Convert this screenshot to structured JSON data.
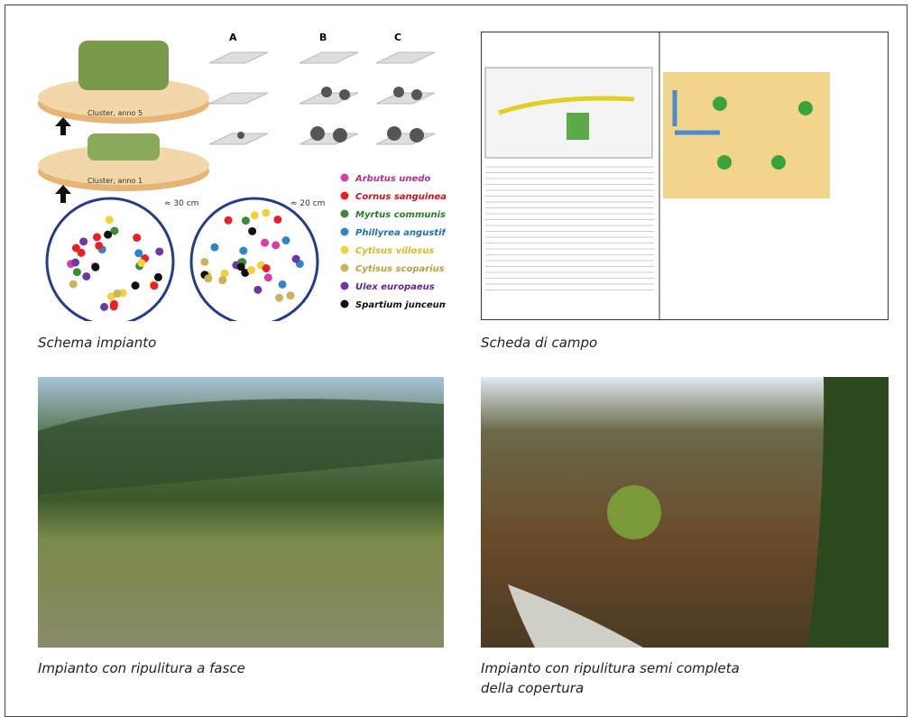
{
  "figures": [
    {
      "caption": "Schema impianto",
      "diagram": {
        "panels": [
          "A",
          "B",
          "C"
        ],
        "clusters": [
          "Cluster, anno 5",
          "Cluster, anno 1"
        ],
        "spacings": [
          "≈ 30 cm",
          "≈ 20 cm"
        ],
        "legend": [
          "Arbutus unedo",
          "Cornus sanguinea",
          "Myrtus communis",
          "Phillyrea angustifolia",
          "Cytisus villosus",
          "Cytisus scoparius",
          "Ulex europaeus",
          "Spartium junceum"
        ]
      }
    },
    {
      "caption": "Scheda di campo"
    },
    {
      "caption": "Impianto con ripulitura a fasce"
    },
    {
      "caption_lines": [
        "Impianto con ripulitura semi completa",
        "della copertura"
      ]
    }
  ]
}
